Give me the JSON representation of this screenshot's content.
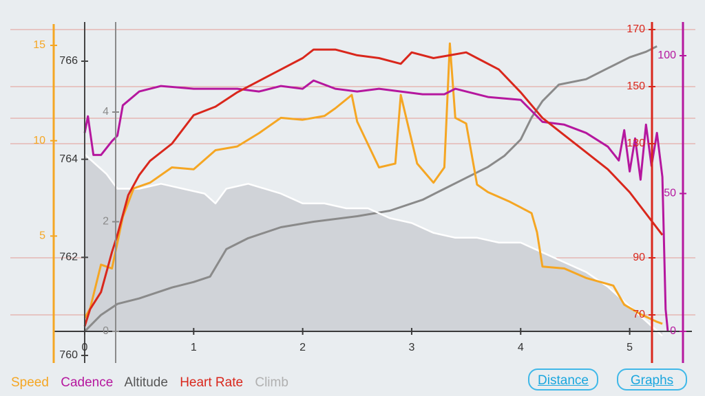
{
  "chart_data": {
    "type": "line",
    "x": {
      "ticks": [
        "0",
        "1",
        "2",
        "3",
        "4",
        "5"
      ],
      "range": [
        0,
        5.35
      ]
    },
    "axes": {
      "speed": {
        "color": "#f5a623",
        "ticks": [
          "5",
          "10",
          "15"
        ],
        "range": [
          0,
          16.5
        ]
      },
      "altitude": {
        "color": "#555555",
        "ticks": [
          "760",
          "762",
          "764",
          "766"
        ],
        "range": [
          760,
          766.6
        ]
      },
      "climb": {
        "color": "#888888",
        "ticks": [
          "0",
          "2",
          "4"
        ],
        "range": [
          0,
          5.2
        ]
      },
      "heart_rate": {
        "color": "#d9271c",
        "ticks": [
          "70",
          "90",
          "130",
          "150",
          "170"
        ],
        "range": [
          65,
          170
        ]
      },
      "cadence": {
        "color": "#b5179e",
        "ticks": [
          "0",
          "50",
          "100"
        ],
        "range": [
          0,
          100
        ]
      }
    },
    "series": [
      {
        "name": "Speed",
        "color": "#f5a623",
        "axis": "speed",
        "points": [
          [
            0,
            0.7
          ],
          [
            0.05,
            1.2
          ],
          [
            0.15,
            3.5
          ],
          [
            0.25,
            3.3
          ],
          [
            0.35,
            6
          ],
          [
            0.45,
            7.5
          ],
          [
            0.6,
            7.8
          ],
          [
            0.8,
            8.6
          ],
          [
            1,
            8.5
          ],
          [
            1.2,
            9.5
          ],
          [
            1.4,
            9.7
          ],
          [
            1.6,
            10.4
          ],
          [
            1.8,
            11.2
          ],
          [
            2.0,
            11.1
          ],
          [
            2.2,
            11.3
          ],
          [
            2.3,
            11.7
          ],
          [
            2.45,
            12.4
          ],
          [
            2.5,
            11.0
          ],
          [
            2.7,
            8.6
          ],
          [
            2.85,
            8.8
          ],
          [
            2.9,
            12.4
          ],
          [
            3.05,
            8.8
          ],
          [
            3.2,
            7.8
          ],
          [
            3.3,
            8.6
          ],
          [
            3.35,
            15.1
          ],
          [
            3.4,
            11.2
          ],
          [
            3.5,
            10.9
          ],
          [
            3.6,
            7.7
          ],
          [
            3.7,
            7.3
          ],
          [
            3.9,
            6.8
          ],
          [
            4.0,
            6.5
          ],
          [
            4.1,
            6.2
          ],
          [
            4.15,
            5.2
          ],
          [
            4.2,
            3.4
          ],
          [
            4.4,
            3.3
          ],
          [
            4.6,
            2.8
          ],
          [
            4.85,
            2.4
          ],
          [
            4.95,
            1.4
          ],
          [
            5.1,
            0.9
          ],
          [
            5.25,
            0.5
          ],
          [
            5.3,
            0.4
          ]
        ]
      },
      {
        "name": "Cadence",
        "color": "#b5179e",
        "axis": "cadence",
        "points": [
          [
            0,
            72
          ],
          [
            0.03,
            78
          ],
          [
            0.08,
            64
          ],
          [
            0.15,
            64
          ],
          [
            0.25,
            69
          ],
          [
            0.3,
            71
          ],
          [
            0.35,
            82
          ],
          [
            0.5,
            87
          ],
          [
            0.7,
            89
          ],
          [
            1.0,
            88
          ],
          [
            1.2,
            88
          ],
          [
            1.4,
            88
          ],
          [
            1.6,
            87
          ],
          [
            1.8,
            89
          ],
          [
            2.0,
            88
          ],
          [
            2.1,
            91
          ],
          [
            2.3,
            88
          ],
          [
            2.5,
            87
          ],
          [
            2.7,
            88
          ],
          [
            2.9,
            87
          ],
          [
            3.1,
            86
          ],
          [
            3.3,
            86
          ],
          [
            3.4,
            88
          ],
          [
            3.5,
            87
          ],
          [
            3.7,
            85
          ],
          [
            4.0,
            84
          ],
          [
            4.2,
            76
          ],
          [
            4.4,
            75
          ],
          [
            4.6,
            72
          ],
          [
            4.8,
            67
          ],
          [
            4.9,
            62
          ],
          [
            4.95,
            73
          ],
          [
            5.0,
            58
          ],
          [
            5.05,
            70
          ],
          [
            5.1,
            55
          ],
          [
            5.15,
            75
          ],
          [
            5.2,
            60
          ],
          [
            5.25,
            72
          ],
          [
            5.3,
            56
          ],
          [
            5.33,
            8
          ],
          [
            5.35,
            0
          ]
        ]
      },
      {
        "name": "Altitude",
        "color": "#ffffff",
        "axis": "altitude",
        "points": [
          [
            0,
            764.1
          ],
          [
            0.1,
            763.9
          ],
          [
            0.2,
            763.7
          ],
          [
            0.3,
            763.4
          ],
          [
            0.5,
            763.4
          ],
          [
            0.7,
            763.5
          ],
          [
            0.9,
            763.4
          ],
          [
            1.1,
            763.3
          ],
          [
            1.2,
            763.1
          ],
          [
            1.3,
            763.4
          ],
          [
            1.5,
            763.5
          ],
          [
            1.8,
            763.3
          ],
          [
            2.0,
            763.1
          ],
          [
            2.2,
            763.1
          ],
          [
            2.4,
            763.0
          ],
          [
            2.6,
            763.0
          ],
          [
            2.8,
            762.8
          ],
          [
            3.0,
            762.7
          ],
          [
            3.2,
            762.5
          ],
          [
            3.4,
            762.4
          ],
          [
            3.6,
            762.4
          ],
          [
            3.8,
            762.3
          ],
          [
            4.0,
            762.3
          ],
          [
            4.2,
            762.1
          ],
          [
            4.4,
            761.9
          ],
          [
            4.6,
            761.7
          ],
          [
            4.8,
            761.4
          ],
          [
            5.0,
            761.0
          ],
          [
            5.2,
            760.6
          ],
          [
            5.3,
            760.4
          ]
        ]
      },
      {
        "name": "Heart Rate",
        "color": "#d9271c",
        "axis": "heart_rate",
        "points": [
          [
            0,
            66
          ],
          [
            0.05,
            72
          ],
          [
            0.15,
            78
          ],
          [
            0.25,
            92
          ],
          [
            0.3,
            98
          ],
          [
            0.4,
            112
          ],
          [
            0.5,
            119
          ],
          [
            0.6,
            124
          ],
          [
            0.8,
            130
          ],
          [
            1.0,
            140
          ],
          [
            1.2,
            143
          ],
          [
            1.4,
            148
          ],
          [
            1.6,
            152
          ],
          [
            1.8,
            156
          ],
          [
            2.0,
            160
          ],
          [
            2.1,
            163
          ],
          [
            2.3,
            163
          ],
          [
            2.5,
            161
          ],
          [
            2.7,
            160
          ],
          [
            2.9,
            158
          ],
          [
            3.0,
            162
          ],
          [
            3.2,
            160
          ],
          [
            3.35,
            161
          ],
          [
            3.5,
            162
          ],
          [
            3.6,
            160
          ],
          [
            3.8,
            156
          ],
          [
            4.0,
            148
          ],
          [
            4.2,
            139
          ],
          [
            4.4,
            133
          ],
          [
            4.6,
            127
          ],
          [
            4.8,
            121
          ],
          [
            5.0,
            113
          ],
          [
            5.2,
            103
          ],
          [
            5.3,
            98
          ]
        ]
      },
      {
        "name": "Climb",
        "color": "#8a8a8a",
        "axis": "climb",
        "points": [
          [
            0,
            0
          ],
          [
            0.15,
            0.3
          ],
          [
            0.3,
            0.5
          ],
          [
            0.5,
            0.6
          ],
          [
            0.8,
            0.8
          ],
          [
            1.0,
            0.9
          ],
          [
            1.15,
            1.0
          ],
          [
            1.3,
            1.5
          ],
          [
            1.5,
            1.7
          ],
          [
            1.8,
            1.9
          ],
          [
            2.1,
            2.0
          ],
          [
            2.5,
            2.1
          ],
          [
            2.8,
            2.2
          ],
          [
            3.1,
            2.4
          ],
          [
            3.3,
            2.6
          ],
          [
            3.5,
            2.8
          ],
          [
            3.7,
            3.0
          ],
          [
            3.85,
            3.2
          ],
          [
            4.0,
            3.5
          ],
          [
            4.1,
            3.9
          ],
          [
            4.2,
            4.2
          ],
          [
            4.35,
            4.5
          ],
          [
            4.6,
            4.6
          ],
          [
            4.8,
            4.8
          ],
          [
            5.0,
            5.0
          ],
          [
            5.15,
            5.1
          ],
          [
            5.25,
            5.2
          ]
        ]
      }
    ]
  },
  "legend": [
    {
      "label": "Speed",
      "color": "#f5a623"
    },
    {
      "label": "Cadence",
      "color": "#b5179e"
    },
    {
      "label": "Altitude",
      "color": "#555555"
    },
    {
      "label": "Heart Rate",
      "color": "#d9271c"
    },
    {
      "label": "Climb",
      "color": "#b0b0b0"
    }
  ],
  "buttons": {
    "distance": "Distance",
    "graphs": "Graphs"
  }
}
